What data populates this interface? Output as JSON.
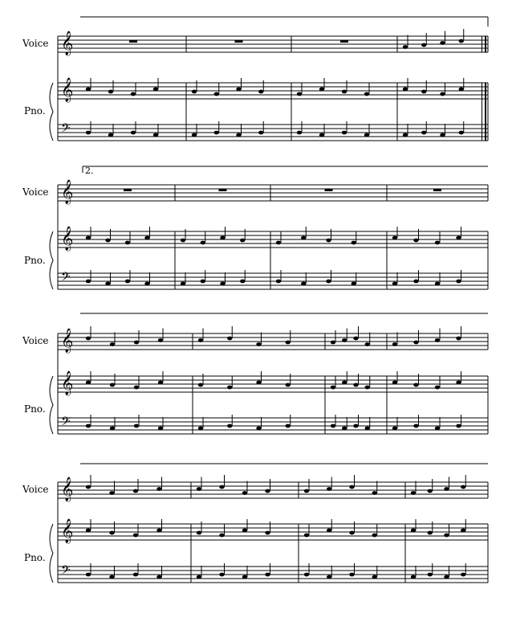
{
  "score": {
    "instruments": {
      "voice": "Voice",
      "piano": "Pno."
    },
    "volta_label": "2.",
    "systems": [
      {
        "voice_rests": [
          true,
          true,
          true,
          false
        ]
      },
      {
        "voice_rests": [
          true,
          true,
          true,
          true
        ]
      },
      {
        "voice_rests": [
          false,
          false,
          false,
          false
        ]
      },
      {
        "voice_rests": [
          false,
          false,
          false,
          false
        ]
      }
    ],
    "colors": {
      "ink": "#000000",
      "background": "#ffffff"
    }
  }
}
